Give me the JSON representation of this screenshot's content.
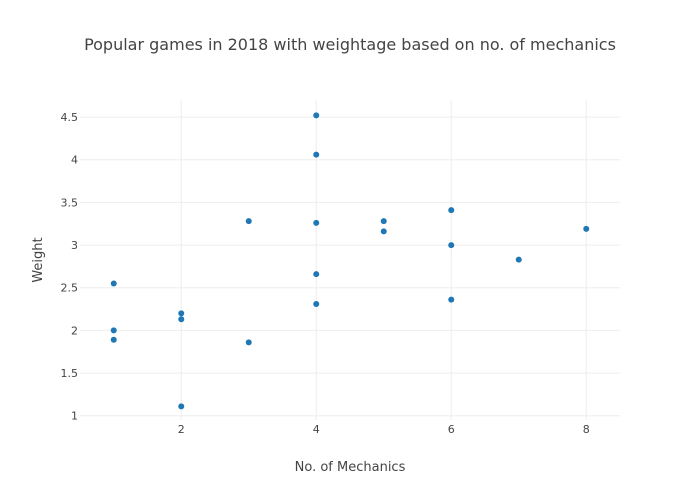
{
  "chart_data": {
    "type": "scatter",
    "title": "Popular games in 2018 with weightage based on no. of mechanics",
    "xlabel": "No. of Mechanics",
    "ylabel": "Weight",
    "xlim": [
      0.5,
      8.5
    ],
    "ylim": [
      0.95,
      4.7
    ],
    "x_ticks": [
      "2",
      "4",
      "6",
      "8"
    ],
    "y_ticks": [
      "1",
      "1.5",
      "2",
      "2.5",
      "3",
      "3.5",
      "4",
      "4.5"
    ],
    "grid": true,
    "legend": "none",
    "marker_color": "#1f77b4",
    "points": [
      {
        "x": 1,
        "y": 2.55
      },
      {
        "x": 1,
        "y": 2.0
      },
      {
        "x": 1,
        "y": 1.89
      },
      {
        "x": 2,
        "y": 2.2
      },
      {
        "x": 2,
        "y": 2.13
      },
      {
        "x": 2,
        "y": 1.11
      },
      {
        "x": 3,
        "y": 3.28
      },
      {
        "x": 3,
        "y": 1.86
      },
      {
        "x": 4,
        "y": 4.52
      },
      {
        "x": 4,
        "y": 4.06
      },
      {
        "x": 4,
        "y": 3.26
      },
      {
        "x": 4,
        "y": 2.66
      },
      {
        "x": 4,
        "y": 2.31
      },
      {
        "x": 5,
        "y": 3.28
      },
      {
        "x": 5,
        "y": 3.16
      },
      {
        "x": 6,
        "y": 3.41
      },
      {
        "x": 6,
        "y": 3.0
      },
      {
        "x": 6,
        "y": 2.36
      },
      {
        "x": 7,
        "y": 2.83
      },
      {
        "x": 8,
        "y": 3.19
      }
    ]
  }
}
